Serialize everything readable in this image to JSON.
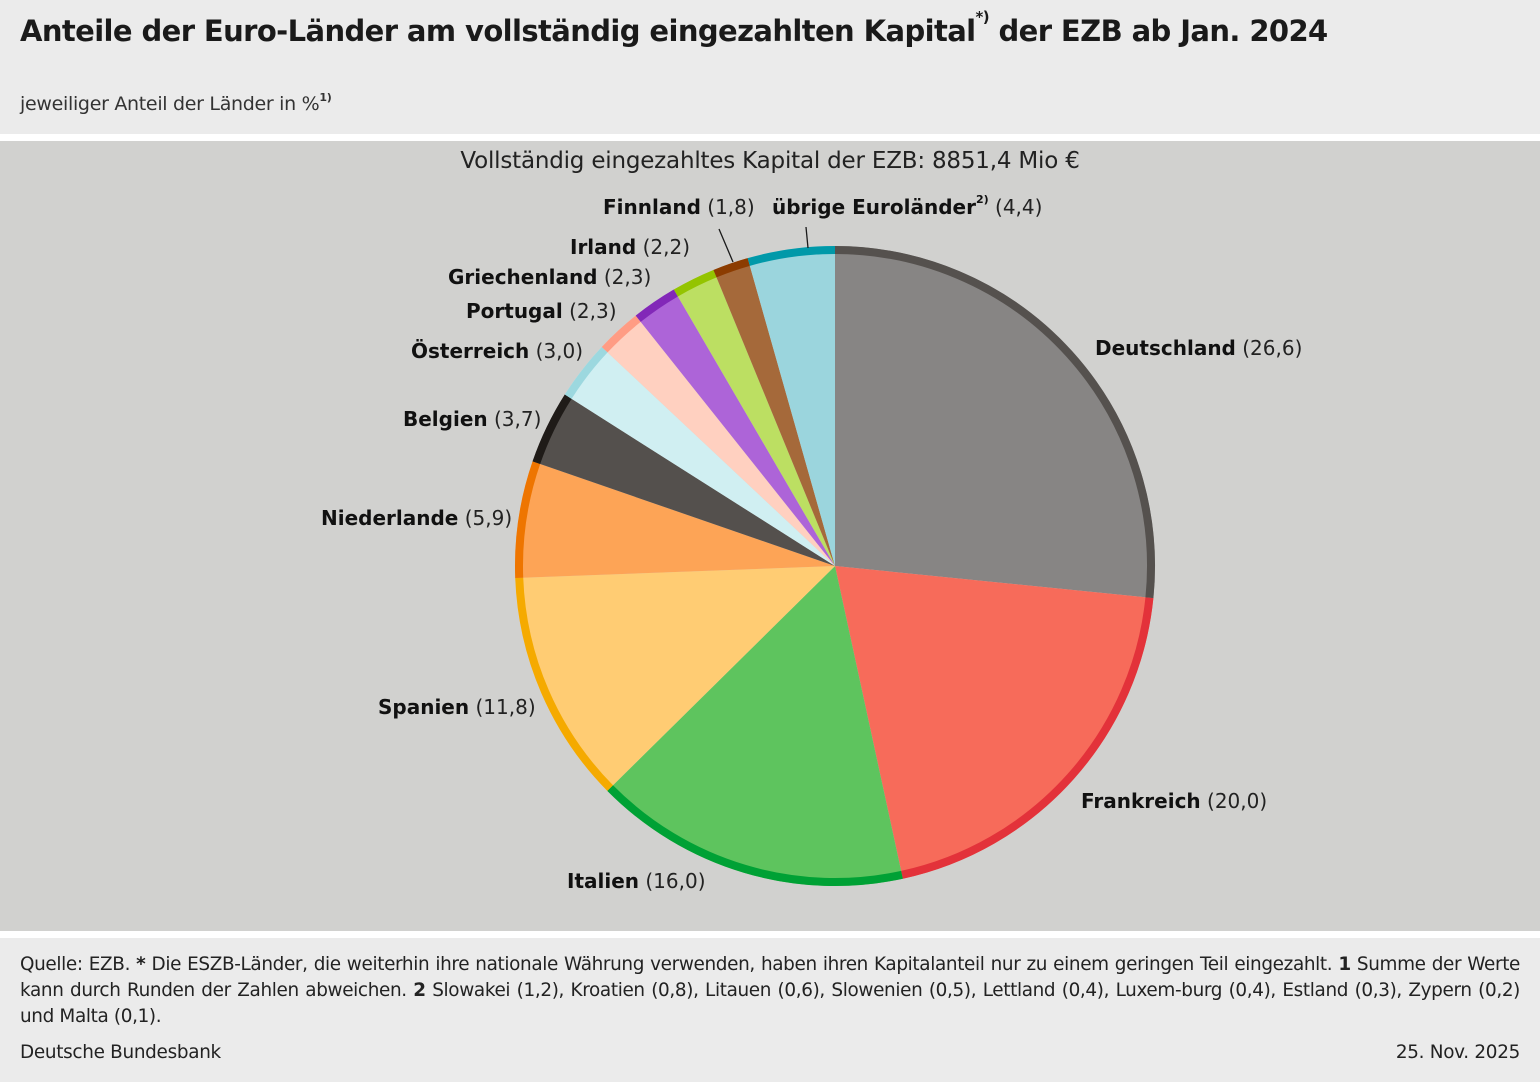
{
  "header": {
    "title_main": "Anteile der Euro-Länder am vollständig eingezahlten Kapital",
    "title_sup": "*)",
    "title_end": " der EZB ab Jan. 2024",
    "subtitle": "jeweiliger Anteil der Länder in %",
    "subtitle_sup": "1)"
  },
  "chart_data": {
    "type": "pie",
    "title": "Vollständig eingezahltes Kapital der EZB: 8851,4 Mio €",
    "unit": "%",
    "start": "top",
    "direction": "clockwise",
    "slices": [
      {
        "label": "Deutschland",
        "value": 26.6,
        "value_text": "(26,6)",
        "fill": "#878584",
        "rim": "#55514e"
      },
      {
        "label": "Frankreich",
        "value": 20.0,
        "value_text": "(20,0)",
        "fill": "#f76b5a",
        "rim": "#e3323a"
      },
      {
        "label": "Italien",
        "value": 16.0,
        "value_text": "(16,0)",
        "fill": "#5ec45e",
        "rim": "#00a135"
      },
      {
        "label": "Spanien",
        "value": 11.8,
        "value_text": "(11,8)",
        "fill": "#ffcc73",
        "rim": "#f5aa00"
      },
      {
        "label": "Niederlande",
        "value": 5.9,
        "value_text": "(5,9)",
        "fill": "#fda456",
        "rim": "#ee7500"
      },
      {
        "label": "Belgien",
        "value": 3.7,
        "value_text": "(3,7)",
        "fill": "#54504d",
        "rim": "#1f1b18"
      },
      {
        "label": "Österreich",
        "value": 3.0,
        "value_text": "(3,0)",
        "fill": "#d0eff2",
        "rim": "#9cd8df"
      },
      {
        "label": "Portugal",
        "value": 2.3,
        "value_text": "(2,3)",
        "fill": "#ffd0c0",
        "rim": "#ff9c84"
      },
      {
        "label": "Griechenland",
        "value": 2.3,
        "value_text": "(2,3)",
        "fill": "#ad64d8",
        "rim": "#8228b8"
      },
      {
        "label": "Irland",
        "value": 2.2,
        "value_text": "(2,2)",
        "fill": "#bcdf62",
        "rim": "#94c400"
      },
      {
        "label": "Finnland",
        "value": 1.8,
        "value_text": "(1,8)",
        "fill": "#a5693a",
        "rim": "#8c3c00"
      },
      {
        "label": "übrige Euroländer",
        "label_sup": "2)",
        "value": 4.4,
        "value_text": "(4,4)",
        "fill": "#9bd5dd",
        "rim": "#0099a9"
      }
    ]
  },
  "footer": {
    "source_label": "Quelle: EZB.",
    "note_star_marker": "*",
    "note_star": "Die ESZB-Länder, die weiterhin ihre nationale Währung verwenden, haben ihren Kapitalanteil nur zu einem geringen Teil eingezahlt.",
    "note1_marker": "1",
    "note1": "Summe der Werte kann durch Runden der Zahlen abweichen.",
    "note2_marker": "2",
    "note2": "Slowakei (1,2), Kroatien (0,8), Litauen (0,6), Slowenien (0,5), Lettland (0,4), Luxem-burg (0,4), Estland (0,3), Zypern (0,2) und Malta (0,1).",
    "organization": "Deutsche Bundesbank",
    "date": "25. Nov. 2025"
  }
}
